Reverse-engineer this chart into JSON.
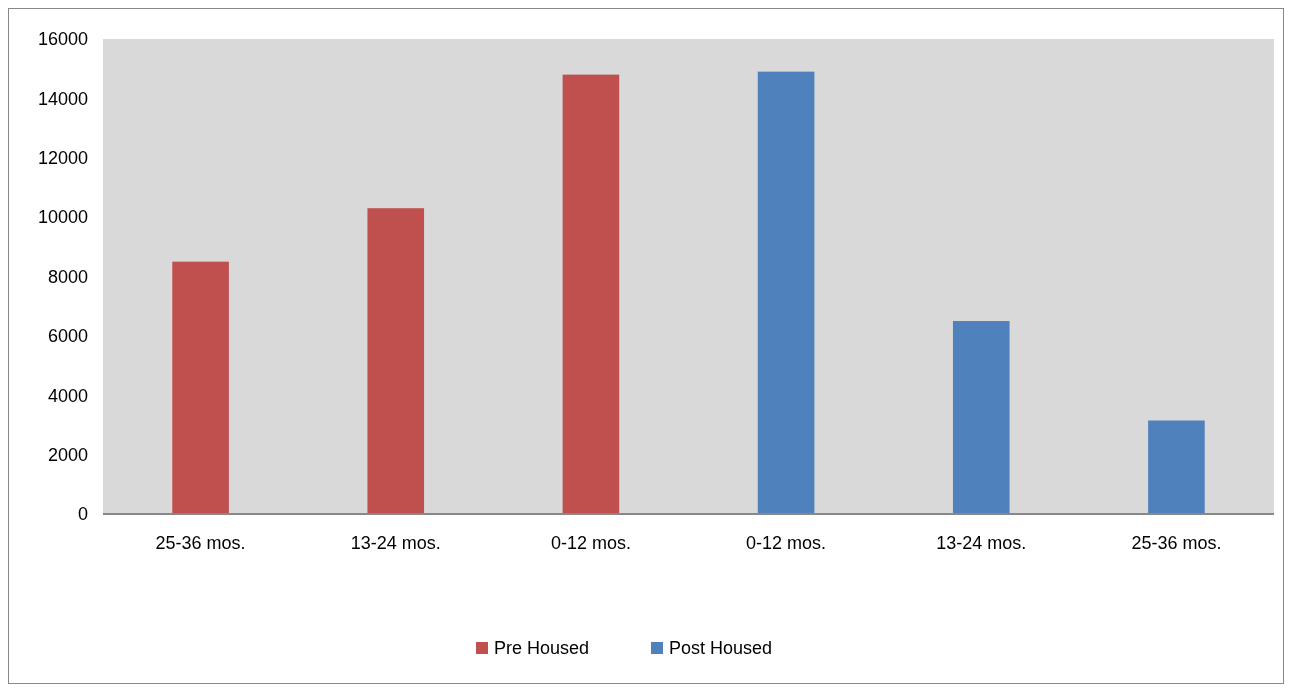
{
  "chart_data": {
    "type": "bar",
    "categories": [
      "25-36 mos.",
      "13-24 mos.",
      "0-12 mos.",
      "0-12 mos.",
      "13-24 mos.",
      "25-36 mos."
    ],
    "series": [
      {
        "name": "Pre Housed",
        "color": "#c0504d",
        "values": [
          8500,
          10300,
          14800,
          null,
          null,
          null
        ]
      },
      {
        "name": "Post Housed",
        "color": "#4f81bd",
        "values": [
          null,
          null,
          null,
          14900,
          6500,
          3150
        ]
      }
    ],
    "ylim": [
      0,
      16000
    ],
    "yticks": [
      0,
      2000,
      4000,
      6000,
      8000,
      10000,
      12000,
      14000,
      16000
    ],
    "legend": "bottom"
  }
}
